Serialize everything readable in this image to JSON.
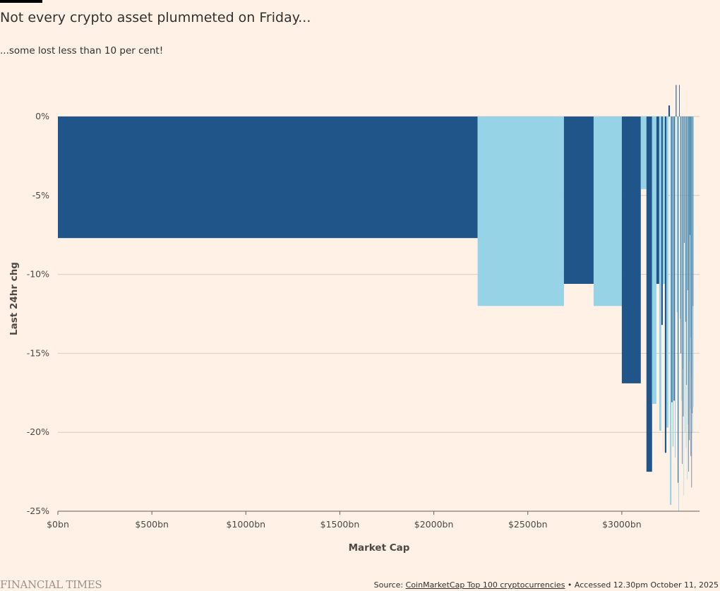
{
  "header": {
    "title": "Not every crypto asset plummeted on Friday...",
    "subtitle": "...some lost less than 10 per cent!"
  },
  "footer": {
    "logo": "FINANCIAL TIMES",
    "source_prefix": "Source: ",
    "source_link": "CoinMarketCap Top 100 cryptocurrencies",
    "source_suffix": " • Accessed 12.30pm October 11, 2025"
  },
  "chart_data": {
    "type": "bar",
    "subtype": "variable-width bar (width = market cap)",
    "xlabel": "Market Cap",
    "ylabel": "Last 24hr chg",
    "xlim": [
      0,
      3414
    ],
    "ylim": [
      -25,
      2
    ],
    "x_ticks": [
      0,
      500,
      1000,
      1500,
      2000,
      2500,
      3000
    ],
    "x_tick_labels": [
      "$0bn",
      "$500bn",
      "$1000bn",
      "$1500bn",
      "$2000bn",
      "$2500bn",
      "$3000bn"
    ],
    "y_ticks": [
      0,
      -5,
      -10,
      -15,
      -20,
      -25
    ],
    "y_tick_labels": [
      "0%",
      "-5%",
      "-10%",
      "-15%",
      "-20%",
      "-25%"
    ],
    "grid": "horizontal",
    "colors": {
      "dark": "#1f5589",
      "light": "#96d3e6",
      "background": "#fff1e5",
      "grid": "#d6ccc2"
    },
    "bars": [
      {
        "market_cap_bn": 2233,
        "change_pct": -7.7
      },
      {
        "market_cap_bn": 459,
        "change_pct": -12.0
      },
      {
        "market_cap_bn": 158,
        "change_pct": -10.6
      },
      {
        "market_cap_bn": 150,
        "change_pct": -12.0
      },
      {
        "market_cap_bn": 101,
        "change_pct": -16.9
      },
      {
        "market_cap_bn": 30,
        "change_pct": -4.6
      },
      {
        "market_cap_bn": 30,
        "change_pct": -22.5
      },
      {
        "market_cap_bn": 23,
        "change_pct": -18.2
      },
      {
        "market_cap_bn": 15,
        "change_pct": -10.6
      },
      {
        "market_cap_bn": 11,
        "change_pct": -19.9
      },
      {
        "market_cap_bn": 8,
        "change_pct": -13.2
      },
      {
        "market_cap_bn": 11,
        "change_pct": -10.6
      },
      {
        "market_cap_bn": 8,
        "change_pct": -21.3
      },
      {
        "market_cap_bn": 11,
        "change_pct": -19.7
      },
      {
        "market_cap_bn": 8,
        "change_pct": 0.7
      },
      {
        "market_cap_bn": 8,
        "change_pct": -24.6
      },
      {
        "market_cap_bn": 6,
        "change_pct": -18.1
      },
      {
        "market_cap_bn": 6,
        "change_pct": -20.9
      },
      {
        "market_cap_bn": 6,
        "change_pct": -18.0
      },
      {
        "market_cap_bn": 5,
        "change_pct": -21.6
      },
      {
        "market_cap_bn": 5,
        "change_pct": 2.0
      },
      {
        "market_cap_bn": 5,
        "change_pct": -12.4
      },
      {
        "market_cap_bn": 4,
        "change_pct": -23.2
      },
      {
        "market_cap_bn": 4,
        "change_pct": -25.0
      },
      {
        "market_cap_bn": 4,
        "change_pct": 2.0
      },
      {
        "market_cap_bn": 4,
        "change_pct": -12.8
      },
      {
        "market_cap_bn": 4,
        "change_pct": -15.0
      },
      {
        "market_cap_bn": 3,
        "change_pct": -18.0
      },
      {
        "market_cap_bn": 3,
        "change_pct": -22.0
      },
      {
        "market_cap_bn": 3,
        "change_pct": -16.0
      },
      {
        "market_cap_bn": 3,
        "change_pct": -19.0
      },
      {
        "market_cap_bn": 3,
        "change_pct": -24.0
      },
      {
        "market_cap_bn": 3,
        "change_pct": -8.0
      },
      {
        "market_cap_bn": 3,
        "change_pct": -20.0
      },
      {
        "market_cap_bn": 3,
        "change_pct": -13.0
      },
      {
        "market_cap_bn": 3,
        "change_pct": -21.0
      },
      {
        "market_cap_bn": 2.5,
        "change_pct": -17.0
      },
      {
        "market_cap_bn": 2.5,
        "change_pct": -23.0
      },
      {
        "market_cap_bn": 2.5,
        "change_pct": -11.0
      },
      {
        "market_cap_bn": 2.5,
        "change_pct": -19.5
      },
      {
        "market_cap_bn": 2.5,
        "change_pct": -22.5
      },
      {
        "market_cap_bn": 2,
        "change_pct": -15.5
      },
      {
        "market_cap_bn": 2,
        "change_pct": -20.5
      },
      {
        "market_cap_bn": 2,
        "change_pct": -18.5
      },
      {
        "market_cap_bn": 2,
        "change_pct": -7.5
      },
      {
        "market_cap_bn": 2,
        "change_pct": -14.0
      },
      {
        "market_cap_bn": 2,
        "change_pct": -21.5
      },
      {
        "market_cap_bn": 2,
        "change_pct": -16.5
      },
      {
        "market_cap_bn": 2,
        "change_pct": -23.5
      },
      {
        "market_cap_bn": 2,
        "change_pct": -9.5
      },
      {
        "market_cap_bn": 2,
        "change_pct": -18.8
      },
      {
        "market_cap_bn": 2,
        "change_pct": -20.0
      },
      {
        "market_cap_bn": 2,
        "change_pct": -12.0
      },
      {
        "market_cap_bn": 2,
        "change_pct": -18.4
      }
    ]
  }
}
